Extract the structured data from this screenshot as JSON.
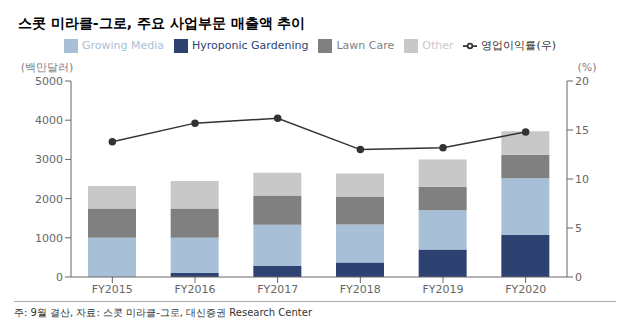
{
  "chart_data": {
    "type": "bar",
    "title": "스콧 미라클-그로, 주요 사업부문 매출액 추이",
    "annotations": [
      "주: 9월 결산, 자료: 스콧 미라클-그로, 대신증권 Research Center"
    ],
    "ylabel": "(백만달러)",
    "y2label": "(%)",
    "categories": [
      "FY2015",
      "FY2016",
      "FY2017",
      "FY2018",
      "FY2019",
      "FY2020"
    ],
    "stacked": true,
    "series": [
      {
        "name": "Hyroponic Gardening",
        "color": "#2e4272",
        "values": [
          0,
          100,
          280,
          370,
          700,
          1070
        ]
      },
      {
        "name": "Growing Media",
        "color": "#a8bfd8",
        "values": [
          1000,
          900,
          1050,
          970,
          1000,
          1450
        ]
      },
      {
        "name": "Lawn Care",
        "color": "#808080",
        "values": [
          750,
          750,
          750,
          700,
          600,
          600
        ]
      },
      {
        "name": "Other",
        "color": "#c8c8c8",
        "values": [
          570,
          700,
          580,
          600,
          700,
          600
        ]
      },
      {
        "name": "영업이익률(우)",
        "type": "line",
        "axis": "y2",
        "color": "#333333",
        "marker": "circle",
        "line_style": "solid",
        "values": [
          13.8,
          15.7,
          16.2,
          13.0,
          13.2,
          14.8
        ]
      }
    ],
    "ylim": [
      0,
      5000
    ],
    "yticks": [
      0,
      1000,
      2000,
      3000,
      4000,
      5000
    ],
    "y2lim": [
      0,
      20
    ],
    "y2ticks": [
      0,
      5,
      10,
      15,
      20
    ],
    "grid": false,
    "legend": "top"
  }
}
